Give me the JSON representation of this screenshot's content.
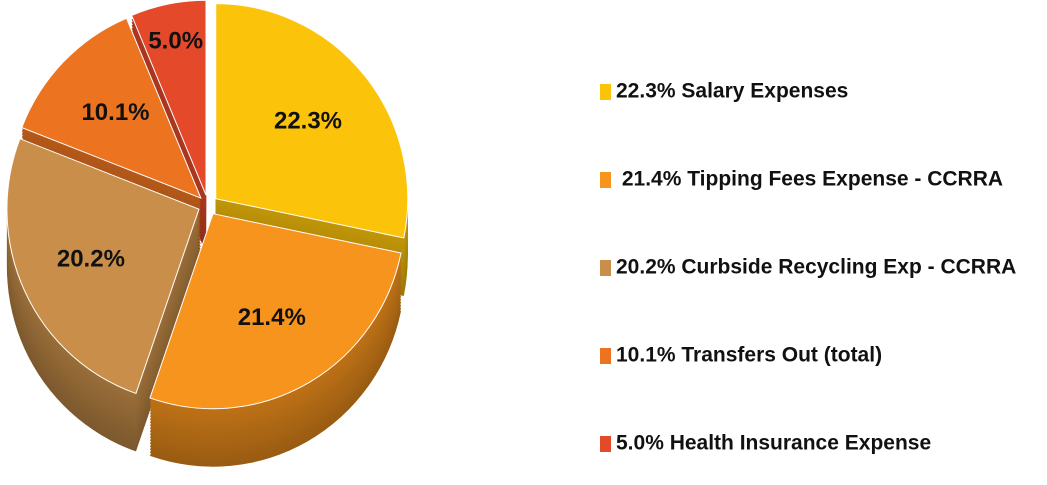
{
  "chart_data": {
    "type": "pie",
    "categories": [
      "22.3% Salary Expenses",
      " 21.4% Tipping Fees Expense - CCRRA",
      "20.2% Curbside Recycling Exp - CCRRA",
      "10.1% Transfers Out (total)",
      "5.0% Health Insurance Expense"
    ],
    "values": [
      22.3,
      21.4,
      20.2,
      10.1,
      5.0
    ],
    "value_labels": [
      "22.3%",
      "21.4%",
      "20.2%",
      "10.1%",
      "5.0%"
    ],
    "colors": [
      "#FCC30B",
      "#F7941D",
      "#C98F4A",
      "#EC7420",
      "#E4492A"
    ],
    "legend": "right"
  }
}
